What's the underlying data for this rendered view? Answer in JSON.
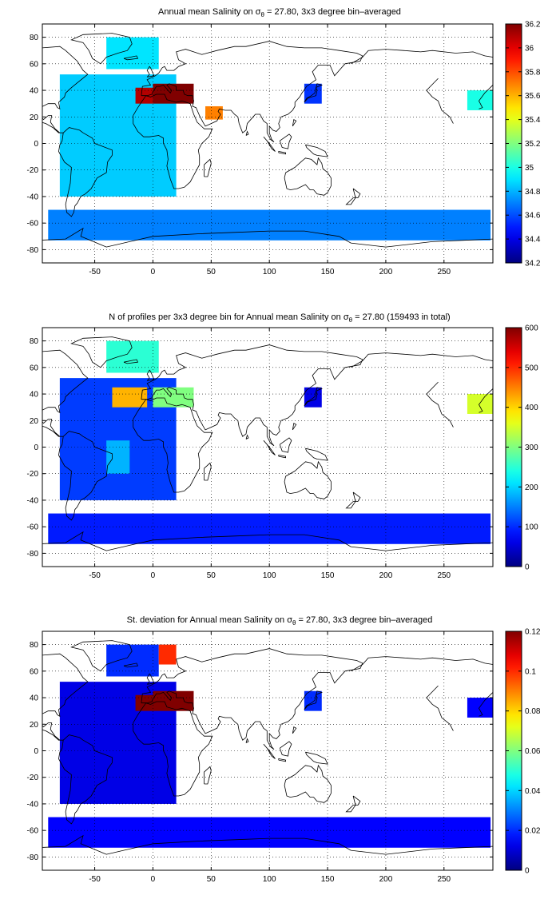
{
  "colors": {
    "colormap": "jet",
    "coastline": "#000000",
    "grid": "#000000",
    "background": "#ffffff"
  },
  "chart_data": [
    {
      "type": "heatmap",
      "title_main": "Annual mean Salinity on ",
      "title_sigma": "σ",
      "title_sub": "θ",
      "title_rest": " = 27.80, 3x3 degree bin–averaged",
      "xlim": [
        -95,
        292
      ],
      "ylim": [
        -90,
        90
      ],
      "xticks": [
        -50,
        0,
        50,
        100,
        150,
        200,
        250
      ],
      "yticks": [
        -80,
        -60,
        -40,
        -20,
        0,
        20,
        40,
        60,
        80
      ],
      "grid": true,
      "colorbar": {
        "range": [
          34.2,
          36.2
        ],
        "ticks": [
          "34.2",
          "34.4",
          "34.6",
          "34.8",
          "35",
          "35.2",
          "35.4",
          "35.6",
          "35.8",
          "36",
          "36.2"
        ]
      },
      "regions": [
        {
          "x": [
            -80,
            20
          ],
          "y": [
            -40,
            52
          ],
          "value": 34.85
        },
        {
          "x": [
            -90,
            290
          ],
          "y": [
            -73,
            -50
          ],
          "value": 34.7
        },
        {
          "x": [
            -40,
            5
          ],
          "y": [
            56,
            80
          ],
          "value": 34.9
        },
        {
          "x": [
            -15,
            0
          ],
          "y": [
            30,
            42
          ],
          "value": 36.1
        },
        {
          "x": [
            0,
            35
          ],
          "y": [
            30,
            45
          ],
          "value": 36.3
        },
        {
          "x": [
            45,
            60
          ],
          "y": [
            18,
            28
          ],
          "value": 35.7
        },
        {
          "x": [
            130,
            145
          ],
          "y": [
            30,
            45
          ],
          "value": 34.55
        },
        {
          "x": [
            270,
            292
          ],
          "y": [
            25,
            40
          ],
          "value": 35.0
        }
      ]
    },
    {
      "type": "heatmap",
      "title_main": "N of profiles per 3x3 degree bin for Annual mean Salinity on ",
      "title_sigma": "σ",
      "title_sub": "θ",
      "title_rest": " = 27.80 (159493 in total)",
      "xlim": [
        -95,
        292
      ],
      "ylim": [
        -90,
        90
      ],
      "xticks": [
        -50,
        0,
        50,
        100,
        150,
        200,
        250
      ],
      "yticks": [
        -80,
        -60,
        -40,
        -20,
        0,
        20,
        40,
        60,
        80
      ],
      "grid": true,
      "colorbar": {
        "range": [
          0,
          600
        ],
        "ticks": [
          "0",
          "100",
          "200",
          "300",
          "400",
          "500",
          "600"
        ]
      },
      "regions": [
        {
          "x": [
            -80,
            20
          ],
          "y": [
            -40,
            52
          ],
          "value": 110
        },
        {
          "x": [
            -90,
            290
          ],
          "y": [
            -73,
            -50
          ],
          "value": 90
        },
        {
          "x": [
            -40,
            5
          ],
          "y": [
            56,
            80
          ],
          "value": 250
        },
        {
          "x": [
            -35,
            -5
          ],
          "y": [
            30,
            45
          ],
          "value": 420
        },
        {
          "x": [
            0,
            35
          ],
          "y": [
            30,
            45
          ],
          "value": 300
        },
        {
          "x": [
            -40,
            -20
          ],
          "y": [
            -20,
            5
          ],
          "value": 180
        },
        {
          "x": [
            130,
            145
          ],
          "y": [
            30,
            45
          ],
          "value": 60
        },
        {
          "x": [
            270,
            292
          ],
          "y": [
            25,
            40
          ],
          "value": 350
        }
      ]
    },
    {
      "type": "heatmap",
      "title_main": "St. deviation for Annual mean Salinity on ",
      "title_sigma": "σ",
      "title_sub": "θ",
      "title_rest": " = 27.80, 3x3 degree bin–averaged",
      "xlim": [
        -95,
        292
      ],
      "ylim": [
        -90,
        90
      ],
      "xticks": [
        -50,
        0,
        50,
        100,
        150,
        200,
        250
      ],
      "yticks": [
        -80,
        -60,
        -40,
        -20,
        0,
        20,
        40,
        60,
        80
      ],
      "grid": true,
      "colorbar": {
        "range": [
          0,
          0.12
        ],
        "ticks": [
          "0",
          "0.02",
          "0.04",
          "0.06",
          "0.08",
          "0.1",
          "0.12"
        ]
      },
      "regions": [
        {
          "x": [
            -80,
            20
          ],
          "y": [
            -40,
            52
          ],
          "value": 0.012
        },
        {
          "x": [
            -90,
            290
          ],
          "y": [
            -73,
            -50
          ],
          "value": 0.015
        },
        {
          "x": [
            -40,
            5
          ],
          "y": [
            56,
            80
          ],
          "value": 0.02
        },
        {
          "x": [
            -15,
            0
          ],
          "y": [
            30,
            42
          ],
          "value": 0.13
        },
        {
          "x": [
            0,
            35
          ],
          "y": [
            30,
            45
          ],
          "value": 0.13
        },
        {
          "x": [
            5,
            20
          ],
          "y": [
            65,
            80
          ],
          "value": 0.1
        },
        {
          "x": [
            130,
            145
          ],
          "y": [
            30,
            45
          ],
          "value": 0.02
        },
        {
          "x": [
            270,
            292
          ],
          "y": [
            25,
            40
          ],
          "value": 0.015
        }
      ]
    }
  ]
}
